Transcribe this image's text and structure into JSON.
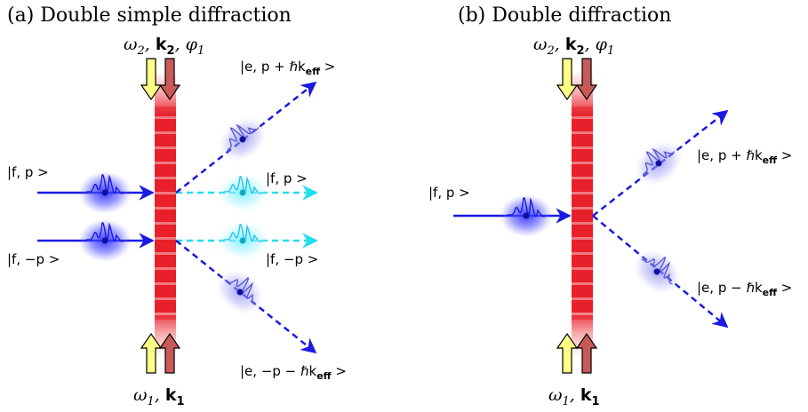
{
  "panel_a": {
    "caption": "(a) Double simple diffraction",
    "top_beam": {
      "w": "ω",
      "w_sub": "2",
      "k": "k",
      "k_sub": "2",
      "phi": "φ",
      "phi_sub": "1"
    },
    "bottom_beam": {
      "w": "ω",
      "w_sub": "1",
      "k": "k",
      "k_sub": "1"
    },
    "state_in_upper": "|f, p >",
    "state_in_lower": "|f, −p >",
    "state_out_upper_transmitted": "|f, p >",
    "state_out_lower_transmitted": "|f, −p >",
    "state_out_up_diffracted": "|e, p + ℏk",
    "state_out_up_diffracted_sub": "eff",
    "state_out_down_diffracted": "|e, −p − ℏk",
    "state_out_down_diffracted_sub": "eff"
  },
  "panel_b": {
    "caption": "(b) Double diffraction",
    "top_beam": {
      "w": "ω",
      "w_sub": "2",
      "k": "k",
      "k_sub": "2",
      "phi": "φ",
      "phi_sub": "1"
    },
    "bottom_beam": {
      "w": "ω",
      "w_sub": "1",
      "k": "k",
      "k_sub": "1"
    },
    "state_in": "|f, p >",
    "state_out_up": "|e, p + ℏk",
    "state_out_up_sub": "eff",
    "state_out_down": "|e, p − ℏk",
    "state_out_down_sub": "eff"
  },
  "colors": {
    "laser_red": "#e8202a",
    "atom_blue": "#1a1ae0",
    "atom_cyan": "#22ddee",
    "arrow_yellow": "#ffff88",
    "arrow_rose": "#c85a5a"
  }
}
